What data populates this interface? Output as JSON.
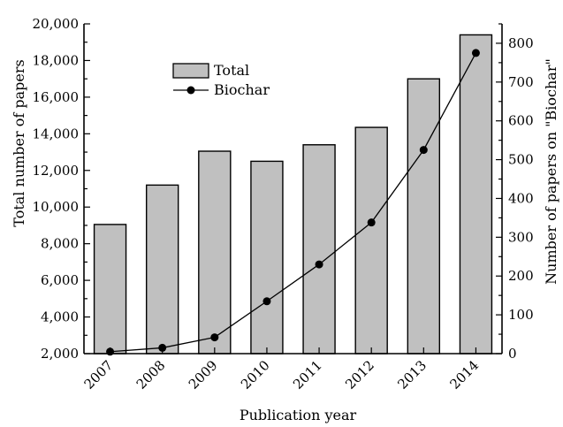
{
  "chart_data": {
    "type": "bar",
    "categories": [
      "2007",
      "2008",
      "2009",
      "2010",
      "2011",
      "2012",
      "2013",
      "2014"
    ],
    "series": [
      {
        "name": "Total",
        "type": "bar",
        "axis": "left",
        "color": "#c0c0c0",
        "values": [
          9050,
          11200,
          13050,
          12500,
          13400,
          14350,
          17000,
          19400
        ]
      },
      {
        "name": "Biochar",
        "type": "line",
        "axis": "right",
        "color": "#000000",
        "marker": "circle",
        "values": [
          5,
          15,
          42,
          135,
          230,
          338,
          525,
          775
        ]
      }
    ],
    "xlabel": "Publication year",
    "ylabel": "Total number of papers",
    "y2label": "Number of papers on \"Biochar\"",
    "ylim": [
      2000,
      20000
    ],
    "y2lim": [
      0,
      850
    ],
    "yticks": [
      "2,000",
      "4,000",
      "6,000",
      "8,000",
      "10,000",
      "12,000",
      "14,000",
      "16,000",
      "18,000",
      "20,000"
    ],
    "y2ticks": [
      "0",
      "100",
      "200",
      "300",
      "400",
      "500",
      "600",
      "700",
      "800"
    ],
    "legend": {
      "position": "top-left",
      "items": [
        "Total",
        "Biochar"
      ]
    },
    "grid": false
  }
}
